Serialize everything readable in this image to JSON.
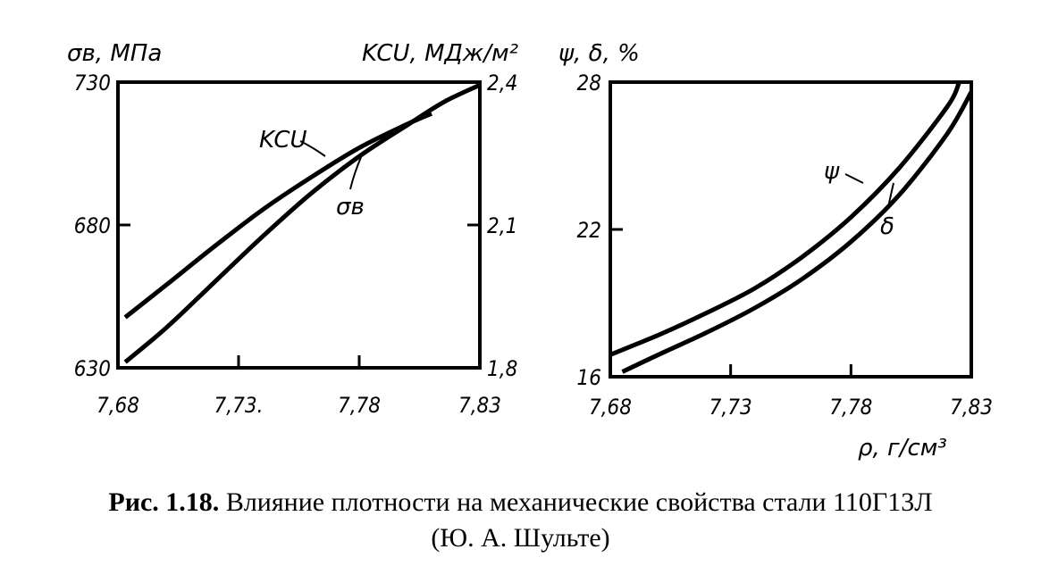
{
  "caption": {
    "figure_number": "Рис. 1.18.",
    "text_line1": "Влияние плотности на механические свойства стали 110Г13Л",
    "text_line2": "(Ю. А. Шульте)"
  },
  "chart_data": [
    {
      "type": "line",
      "xlabel": "",
      "x_tick_labels": [
        "7,68",
        "7,73.",
        "7,78",
        "7,83"
      ],
      "x_ticks": [
        7.68,
        7.73,
        7.78,
        7.83
      ],
      "xlim": [
        7.68,
        7.83
      ],
      "y_left_label": "σв, МПа",
      "y_left_ticks": [
        "730",
        "680",
        "630"
      ],
      "y_left_values": [
        730,
        680,
        630
      ],
      "ylim_left": [
        630,
        730
      ],
      "y_right_label": "KCU, МДж/м²",
      "y_right_ticks": [
        "2,4",
        "2,1",
        "1,8"
      ],
      "y_right_values": [
        2.4,
        2.1,
        1.8
      ],
      "ylim_right": [
        1.8,
        2.4
      ],
      "grid": false,
      "series": [
        {
          "name": "KCU",
          "axis": "right",
          "x": [
            7.683,
            7.7,
            7.72,
            7.74,
            7.76,
            7.78,
            7.8,
            7.81
          ],
          "values": [
            1.906,
            1.974,
            2.055,
            2.132,
            2.2,
            2.262,
            2.312,
            2.334
          ]
        },
        {
          "name": "σв",
          "axis": "left",
          "x": [
            7.683,
            7.7,
            7.72,
            7.74,
            7.76,
            7.78,
            7.8,
            7.815,
            7.83
          ],
          "values": [
            632,
            644,
            660,
            676,
            691,
            704,
            715,
            723,
            729
          ]
        }
      ]
    },
    {
      "type": "line",
      "xlabel": "ρ, г/см³",
      "x_tick_labels": [
        "7,68",
        "7,73",
        "7,78",
        "7,83"
      ],
      "x_ticks": [
        7.68,
        7.73,
        7.78,
        7.83
      ],
      "xlim": [
        7.68,
        7.83
      ],
      "ylabel": "ψ, δ, %",
      "y_tick_labels": [
        "28",
        "22",
        "16"
      ],
      "y_ticks": [
        28,
        22,
        16
      ],
      "ylim": [
        16,
        28
      ],
      "grid": false,
      "series": [
        {
          "name": "ψ",
          "x": [
            7.68,
            7.7,
            7.72,
            7.74,
            7.76,
            7.78,
            7.8,
            7.82,
            7.825
          ],
          "values": [
            16.9,
            17.7,
            18.6,
            19.6,
            20.9,
            22.5,
            24.5,
            27.0,
            28.0
          ]
        },
        {
          "name": "δ",
          "x": [
            7.685,
            7.7,
            7.72,
            7.74,
            7.76,
            7.78,
            7.8,
            7.82,
            7.83
          ],
          "values": [
            16.2,
            16.9,
            17.8,
            18.8,
            20.0,
            21.5,
            23.4,
            25.9,
            27.6
          ]
        }
      ]
    }
  ]
}
